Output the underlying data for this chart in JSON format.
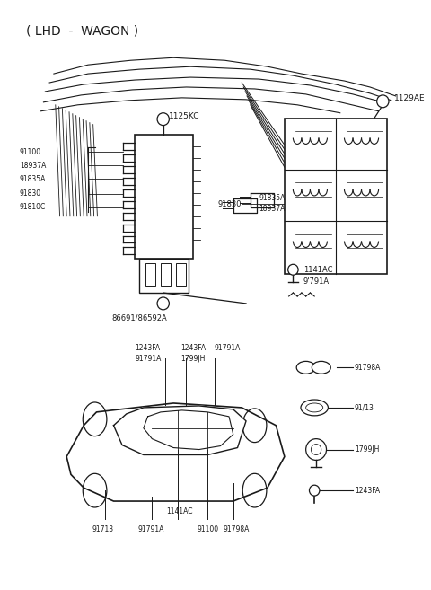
{
  "title": "( LHD  -  WAGON )",
  "bg_color": "#ffffff",
  "line_color": "#1a1a1a",
  "text_color": "#1a1a1a",
  "figsize": [
    4.8,
    6.57
  ],
  "dpi": 100,
  "label_1125KC": "1125KC",
  "label_91100": "91100",
  "label_18937A": "18937A",
  "label_91835A": "91835A",
  "label_91830": "91830",
  "label_91810C": "91810C",
  "label_91835A_2": "91835A",
  "label_18937A_2": "18937A",
  "label_91830_2": "91830",
  "label_1129AE": "1129AE",
  "label_86691": "86691/86592A",
  "label_1141AC": "1141AC",
  "label_91791A_u": "9'791A",
  "label_1243FA_1": "1243FA",
  "label_91791A_1": "91791A",
  "label_1799JH_1": "1799JH",
  "label_1243FA_2": "1243FA",
  "label_91791A_2": "91791A",
  "label_91713": "91713",
  "label_91791A_b": "91791A",
  "label_1141AC_b": "1141AC",
  "label_91100_b": "91100",
  "label_91798A_b": "91798A",
  "label_91798A_r": "91798A",
  "label_9113": "91/13",
  "label_1799JH_r": "1799JH",
  "label_1243FA_r": "1243FA"
}
